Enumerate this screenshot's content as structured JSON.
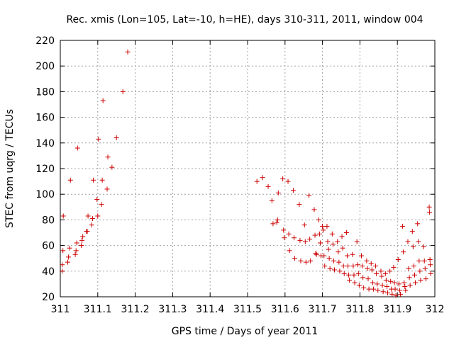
{
  "chart_data": {
    "type": "scatter",
    "title": "Rec. xmis (Lon=105, Lat=-10, h=HE), days 310-311, 2011, window 004",
    "xlabel": "GPS time / Days of year 2011",
    "ylabel": "STEC from uqrg / TECUs",
    "xlim": [
      311,
      312
    ],
    "ylim": [
      20,
      220
    ],
    "xticks": [
      311,
      311.1,
      311.2,
      311.3,
      311.4,
      311.5,
      311.6,
      311.7,
      311.8,
      311.9,
      312
    ],
    "xtick_labels": [
      "311",
      "311.1",
      "311.2",
      "311.3",
      "311.4",
      "311.5",
      "311.6",
      "311.7",
      "311.8",
      "311.9",
      "312"
    ],
    "yticks": [
      20,
      40,
      60,
      80,
      100,
      120,
      140,
      160,
      180,
      200,
      220
    ],
    "ytick_labels": [
      "20",
      "40",
      "60",
      "80",
      "100",
      "120",
      "140",
      "160",
      "180",
      "200",
      "220"
    ],
    "grid": true,
    "marker": "+",
    "color": "#cc0000",
    "series": [
      {
        "name": "STEC",
        "points": [
          [
            311.005,
            40
          ],
          [
            311.005,
            45
          ],
          [
            311.007,
            56
          ],
          [
            311.008,
            83
          ],
          [
            311.02,
            47
          ],
          [
            311.022,
            51
          ],
          [
            311.025,
            58
          ],
          [
            311.027,
            111
          ],
          [
            311.04,
            53
          ],
          [
            311.042,
            56
          ],
          [
            311.044,
            62
          ],
          [
            311.046,
            136
          ],
          [
            311.056,
            60
          ],
          [
            311.058,
            64
          ],
          [
            311.06,
            67
          ],
          [
            311.07,
            71
          ],
          [
            311.072,
            71
          ],
          [
            311.074,
            83
          ],
          [
            311.084,
            76
          ],
          [
            311.086,
            81
          ],
          [
            311.088,
            111
          ],
          [
            311.098,
            96
          ],
          [
            311.1,
            83
          ],
          [
            311.102,
            143
          ],
          [
            311.11,
            92
          ],
          [
            311.112,
            111
          ],
          [
            311.114,
            173
          ],
          [
            311.125,
            104
          ],
          [
            311.127,
            129
          ],
          [
            311.138,
            121
          ],
          [
            311.15,
            144
          ],
          [
            311.167,
            180
          ],
          [
            311.18,
            211
          ],
          [
            311.525,
            110
          ],
          [
            311.54,
            113
          ],
          [
            311.555,
            106
          ],
          [
            311.565,
            95
          ],
          [
            311.568,
            77
          ],
          [
            311.578,
            78
          ],
          [
            311.58,
            80
          ],
          [
            311.582,
            101
          ],
          [
            311.594,
            112
          ],
          [
            311.596,
            72
          ],
          [
            311.598,
            66
          ],
          [
            311.608,
            110
          ],
          [
            311.61,
            69
          ],
          [
            311.612,
            56
          ],
          [
            311.622,
            103
          ],
          [
            311.624,
            66
          ],
          [
            311.626,
            50
          ],
          [
            311.638,
            92
          ],
          [
            311.64,
            64
          ],
          [
            311.642,
            48
          ],
          [
            311.652,
            76
          ],
          [
            311.654,
            63
          ],
          [
            311.656,
            47
          ],
          [
            311.664,
            99
          ],
          [
            311.666,
            65
          ],
          [
            311.668,
            48
          ],
          [
            311.678,
            88
          ],
          [
            311.68,
            68
          ],
          [
            311.682,
            54
          ],
          [
            311.684,
            53
          ],
          [
            311.69,
            80
          ],
          [
            311.692,
            69
          ],
          [
            311.694,
            62
          ],
          [
            311.696,
            52
          ],
          [
            311.7,
            75
          ],
          [
            311.702,
            72
          ],
          [
            311.704,
            52
          ],
          [
            311.706,
            44
          ],
          [
            311.712,
            75
          ],
          [
            311.714,
            63
          ],
          [
            311.716,
            57
          ],
          [
            311.718,
            50
          ],
          [
            311.72,
            42
          ],
          [
            311.726,
            69
          ],
          [
            311.728,
            61
          ],
          [
            311.73,
            48
          ],
          [
            311.732,
            41
          ],
          [
            311.74,
            63
          ],
          [
            311.742,
            55
          ],
          [
            311.744,
            47
          ],
          [
            311.746,
            40
          ],
          [
            311.752,
            67
          ],
          [
            311.754,
            58
          ],
          [
            311.756,
            44
          ],
          [
            311.758,
            38
          ],
          [
            311.764,
            70
          ],
          [
            311.766,
            52
          ],
          [
            311.768,
            44
          ],
          [
            311.77,
            37
          ],
          [
            311.772,
            33
          ],
          [
            311.78,
            53
          ],
          [
            311.782,
            44
          ],
          [
            311.784,
            37
          ],
          [
            311.786,
            31
          ],
          [
            311.792,
            63
          ],
          [
            311.794,
            45
          ],
          [
            311.796,
            38
          ],
          [
            311.798,
            29
          ],
          [
            311.804,
            52
          ],
          [
            311.806,
            44
          ],
          [
            311.808,
            35
          ],
          [
            311.81,
            27
          ],
          [
            311.818,
            48
          ],
          [
            311.82,
            42
          ],
          [
            311.822,
            34
          ],
          [
            311.824,
            26
          ],
          [
            311.83,
            46
          ],
          [
            311.832,
            41
          ],
          [
            311.834,
            31
          ],
          [
            311.836,
            26
          ],
          [
            311.842,
            44
          ],
          [
            311.844,
            38
          ],
          [
            311.846,
            30
          ],
          [
            311.848,
            25
          ],
          [
            311.856,
            40
          ],
          [
            311.858,
            36
          ],
          [
            311.86,
            29
          ],
          [
            311.862,
            24
          ],
          [
            311.868,
            38
          ],
          [
            311.87,
            33
          ],
          [
            311.872,
            28
          ],
          [
            311.874,
            23
          ],
          [
            311.88,
            40
          ],
          [
            311.882,
            32
          ],
          [
            311.884,
            26
          ],
          [
            311.886,
            22
          ],
          [
            311.89,
            43
          ],
          [
            311.892,
            31
          ],
          [
            311.894,
            26
          ],
          [
            311.896,
            21
          ],
          [
            311.902,
            49
          ],
          [
            311.904,
            30
          ],
          [
            311.906,
            25
          ],
          [
            311.908,
            22
          ],
          [
            311.914,
            75
          ],
          [
            311.916,
            55
          ],
          [
            311.918,
            31
          ],
          [
            311.92,
            28
          ],
          [
            311.922,
            25
          ],
          [
            311.928,
            63
          ],
          [
            311.93,
            42
          ],
          [
            311.932,
            35
          ],
          [
            311.934,
            29
          ],
          [
            311.94,
            71
          ],
          [
            311.942,
            59
          ],
          [
            311.944,
            44
          ],
          [
            311.946,
            37
          ],
          [
            311.948,
            31
          ],
          [
            311.954,
            77
          ],
          [
            311.956,
            63
          ],
          [
            311.958,
            48
          ],
          [
            311.96,
            40
          ],
          [
            311.962,
            33
          ],
          [
            311.97,
            59
          ],
          [
            311.972,
            48
          ],
          [
            311.974,
            42
          ],
          [
            311.976,
            34
          ],
          [
            311.985,
            90
          ],
          [
            311.986,
            86
          ],
          [
            311.987,
            49
          ],
          [
            311.988,
            45
          ],
          [
            311.989,
            38
          ]
        ]
      }
    ]
  }
}
